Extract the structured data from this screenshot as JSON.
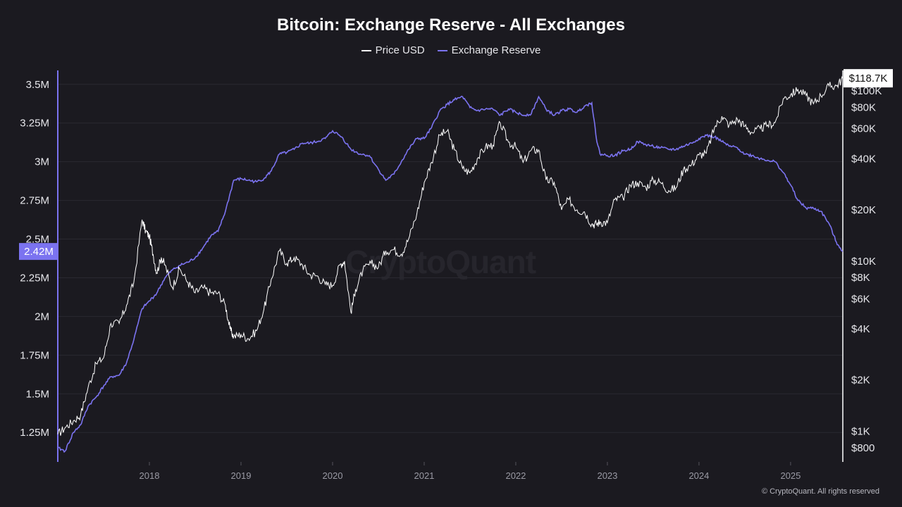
{
  "title": "Bitcoin: Exchange Reserve - All Exchanges",
  "legend": {
    "price_label": "Price USD",
    "reserve_label": "Exchange Reserve"
  },
  "watermark": "CryptoQuant",
  "copyright": "© CryptoQuant. All rights reserved",
  "colors": {
    "background": "#1b1a20",
    "price": "#ffffff",
    "reserve": "#7b73f0",
    "grid": "#2a2930",
    "current_reserve_badge": "#7b73f0",
    "current_price_badge": "#ffffff"
  },
  "chart_data": {
    "type": "line",
    "title": "Bitcoin: Exchange Reserve - All Exchanges",
    "x_ticks": [
      "2018",
      "2019",
      "2020",
      "2021",
      "2022",
      "2023",
      "2024",
      "2025"
    ],
    "left_axis": {
      "ticks": [
        "1.25M",
        "1.5M",
        "1.75M",
        "2M",
        "2.25M",
        "2.5M",
        "2.75M",
        "3M",
        "3.25M",
        "3.5M"
      ],
      "tick_values": [
        1250000,
        1500000,
        1750000,
        2000000,
        2250000,
        2500000,
        2750000,
        3000000,
        3250000,
        3500000
      ],
      "range": [
        1060000,
        3590000
      ],
      "current_label": "2.42M",
      "current_value": 2420000
    },
    "right_axis": {
      "scale": "log",
      "ticks": [
        "$800",
        "$1K",
        "$2K",
        "$4K",
        "$6K",
        "$8K",
        "$10K",
        "$20K",
        "$40K",
        "$60K",
        "$80K",
        "$100K"
      ],
      "tick_values": [
        800,
        1000,
        2000,
        4000,
        6000,
        8000,
        10000,
        20000,
        40000,
        60000,
        80000,
        100000
      ],
      "range": [
        660,
        132000
      ],
      "current_label": "$118.7K",
      "current_value": 118700
    },
    "x_range": [
      2017.0,
      2025.57
    ],
    "grid": true,
    "legend_position": "top-center",
    "series": [
      {
        "name": "Price USD",
        "axis": "right",
        "x": [
          2017.0,
          2017.08,
          2017.17,
          2017.25,
          2017.33,
          2017.42,
          2017.5,
          2017.58,
          2017.67,
          2017.75,
          2017.83,
          2017.92,
          2017.96,
          2018.0,
          2018.04,
          2018.08,
          2018.13,
          2018.17,
          2018.25,
          2018.33,
          2018.42,
          2018.5,
          2018.58,
          2018.67,
          2018.75,
          2018.83,
          2018.88,
          2018.92,
          2019.0,
          2019.08,
          2019.17,
          2019.25,
          2019.33,
          2019.42,
          2019.5,
          2019.58,
          2019.67,
          2019.75,
          2019.83,
          2019.92,
          2020.0,
          2020.08,
          2020.13,
          2020.2,
          2020.25,
          2020.33,
          2020.42,
          2020.5,
          2020.58,
          2020.67,
          2020.75,
          2020.83,
          2020.92,
          2021.0,
          2021.08,
          2021.17,
          2021.25,
          2021.33,
          2021.42,
          2021.5,
          2021.58,
          2021.67,
          2021.75,
          2021.83,
          2021.92,
          2022.0,
          2022.08,
          2022.17,
          2022.25,
          2022.33,
          2022.42,
          2022.5,
          2022.58,
          2022.67,
          2022.75,
          2022.83,
          2022.88,
          2022.92,
          2023.0,
          2023.08,
          2023.17,
          2023.25,
          2023.33,
          2023.42,
          2023.5,
          2023.58,
          2023.67,
          2023.75,
          2023.83,
          2023.92,
          2024.0,
          2024.08,
          2024.17,
          2024.25,
          2024.33,
          2024.42,
          2024.5,
          2024.58,
          2024.67,
          2024.75,
          2024.83,
          2024.92,
          2025.0,
          2025.08,
          2025.17,
          2025.25,
          2025.33,
          2025.42,
          2025.5,
          2025.57
        ],
        "values": [
          960,
          1050,
          1150,
          1250,
          1800,
          2500,
          2700,
          4300,
          4300,
          5500,
          7500,
          17500,
          15000,
          14000,
          11000,
          8500,
          10500,
          9500,
          7000,
          9000,
          7500,
          6500,
          7000,
          6500,
          6500,
          5500,
          4000,
          3600,
          3700,
          3500,
          3900,
          5200,
          7800,
          11500,
          9700,
          10500,
          9500,
          8300,
          8200,
          7300,
          7200,
          9500,
          10000,
          5000,
          6800,
          8800,
          9700,
          9200,
          11500,
          11700,
          11000,
          13500,
          19000,
          29000,
          38000,
          55000,
          58000,
          45000,
          35000,
          33000,
          40000,
          47000,
          48000,
          65000,
          50000,
          47000,
          38000,
          45000,
          45000,
          30000,
          29000,
          20000,
          23000,
          20000,
          19500,
          16500,
          16500,
          17000,
          16800,
          23000,
          23500,
          28000,
          29000,
          27000,
          30000,
          29000,
          26000,
          27000,
          34500,
          37000,
          42000,
          43000,
          61000,
          71000,
          63000,
          68000,
          62000,
          57000,
          60000,
          63000,
          65000,
          90000,
          95000,
          102000,
          94000,
          84000,
          94000,
          107000,
          107000,
          118700
        ]
      },
      {
        "name": "Exchange Reserve",
        "axis": "left",
        "x": [
          2017.0,
          2017.08,
          2017.17,
          2017.25,
          2017.33,
          2017.42,
          2017.5,
          2017.58,
          2017.67,
          2017.75,
          2017.83,
          2017.92,
          2018.0,
          2018.08,
          2018.17,
          2018.25,
          2018.33,
          2018.42,
          2018.5,
          2018.58,
          2018.67,
          2018.75,
          2018.83,
          2018.92,
          2019.0,
          2019.08,
          2019.17,
          2019.25,
          2019.33,
          2019.42,
          2019.5,
          2019.58,
          2019.67,
          2019.75,
          2019.83,
          2019.92,
          2020.0,
          2020.1,
          2020.2,
          2020.3,
          2020.4,
          2020.5,
          2020.58,
          2020.67,
          2020.75,
          2020.83,
          2020.92,
          2021.0,
          2021.08,
          2021.17,
          2021.25,
          2021.33,
          2021.42,
          2021.5,
          2021.58,
          2021.67,
          2021.75,
          2021.83,
          2021.92,
          2022.0,
          2022.08,
          2022.17,
          2022.25,
          2022.33,
          2022.42,
          2022.5,
          2022.58,
          2022.67,
          2022.75,
          2022.83,
          2022.88,
          2022.92,
          2023.0,
          2023.08,
          2023.17,
          2023.25,
          2023.33,
          2023.42,
          2023.5,
          2023.58,
          2023.67,
          2023.75,
          2023.83,
          2023.92,
          2024.0,
          2024.08,
          2024.17,
          2024.25,
          2024.33,
          2024.42,
          2024.5,
          2024.58,
          2024.67,
          2024.75,
          2024.83,
          2024.92,
          2025.0,
          2025.08,
          2025.17,
          2025.25,
          2025.33,
          2025.42,
          2025.5,
          2025.57
        ],
        "values": [
          1150000,
          1130000,
          1250000,
          1300000,
          1420000,
          1480000,
          1550000,
          1610000,
          1620000,
          1700000,
          1850000,
          2050000,
          2100000,
          2150000,
          2250000,
          2300000,
          2330000,
          2350000,
          2380000,
          2440000,
          2520000,
          2550000,
          2680000,
          2880000,
          2890000,
          2880000,
          2870000,
          2890000,
          2940000,
          3050000,
          3060000,
          3080000,
          3120000,
          3120000,
          3130000,
          3150000,
          3200000,
          3160000,
          3080000,
          3050000,
          3040000,
          2950000,
          2880000,
          2920000,
          3000000,
          3080000,
          3150000,
          3150000,
          3220000,
          3330000,
          3370000,
          3400000,
          3420000,
          3350000,
          3330000,
          3340000,
          3340000,
          3300000,
          3340000,
          3320000,
          3300000,
          3310000,
          3420000,
          3340000,
          3300000,
          3330000,
          3340000,
          3320000,
          3360000,
          3380000,
          3150000,
          3050000,
          3040000,
          3040000,
          3070000,
          3080000,
          3130000,
          3110000,
          3100000,
          3090000,
          3080000,
          3080000,
          3100000,
          3120000,
          3150000,
          3170000,
          3160000,
          3130000,
          3100000,
          3090000,
          3050000,
          3040000,
          3020000,
          3010000,
          3000000,
          2930000,
          2850000,
          2750000,
          2700000,
          2700000,
          2680000,
          2600000,
          2480000,
          2420000
        ]
      }
    ]
  }
}
